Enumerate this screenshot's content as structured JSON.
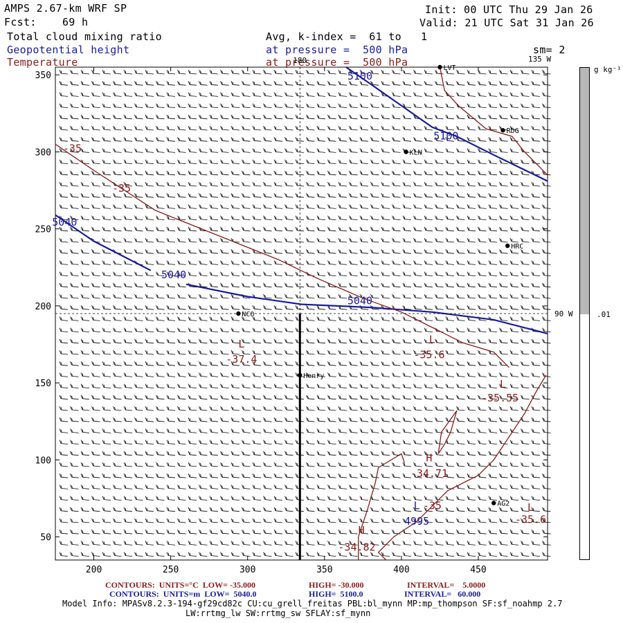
{
  "header": {
    "model": "AMPS 2.67-km WRF SP",
    "fcst": "Fcst:    69 h",
    "init": "Init: 00 UTC Thu 29 Jan 26",
    "valid": "Valid: 21 UTC Sat 31 Jan 26",
    "field1": "Total cloud mixing ratio",
    "field2": "Geopotential height",
    "field3": "Temperature",
    "avg": "Avg, k-index =  61 to   1",
    "pres1": "at pressure =  500 hPa",
    "pres2": "at pressure =  500 hPa",
    "sm": "sm= 2"
  },
  "map": {
    "x_ticks": [
      "200",
      "250",
      "300",
      "350",
      "400",
      "450"
    ],
    "y_ticks": [
      "350",
      "300",
      "250",
      "200",
      "150",
      "100",
      "50"
    ],
    "meridian_labels": {
      "top": "180",
      "top_right": "135 W",
      "right": "90 W"
    },
    "stations": [
      {
        "name": "LVT",
        "x": 425,
        "y": 355
      },
      {
        "name": "RDG",
        "x": 466,
        "y": 314
      },
      {
        "name": "KLN",
        "x": 403,
        "y": 300
      },
      {
        "name": "HRC",
        "x": 469,
        "y": 239
      },
      {
        "name": "NCO",
        "x": 294,
        "y": 195
      },
      {
        "name": "Henry",
        "x": 334,
        "y": 155
      },
      {
        "name": "AG2",
        "x": 460,
        "y": 72
      }
    ],
    "temp_labels": [
      {
        "text": "-35",
        "x": 186,
        "y": 300
      },
      {
        "text": "-35",
        "x": 218,
        "y": 274
      },
      {
        "text": "L",
        "x": 296,
        "y": 173
      },
      {
        "text": "-37.4",
        "x": 296,
        "y": 163
      },
      {
        "text": "L",
        "x": 420,
        "y": 176
      },
      {
        "text": "-35.6",
        "x": 418,
        "y": 166
      },
      {
        "text": "L",
        "x": 466,
        "y": 147
      },
      {
        "text": "-35.55",
        "x": 464,
        "y": 138
      },
      {
        "text": "H",
        "x": 418,
        "y": 99
      },
      {
        "text": "-34.71",
        "x": 418,
        "y": 89
      },
      {
        "text": "-35",
        "x": 420,
        "y": 68
      },
      {
        "text": "L",
        "x": 484,
        "y": 67
      },
      {
        "text": "-35.6",
        "x": 484,
        "y": 59
      },
      {
        "text": "H",
        "x": 374,
        "y": 52
      },
      {
        "text": "-34.82",
        "x": 371,
        "y": 41
      }
    ],
    "height_labels": [
      {
        "text": "5100",
        "x": 373,
        "y": 347
      },
      {
        "text": "5100",
        "x": 429,
        "y": 308
      },
      {
        "text": "5040",
        "x": 181,
        "y": 252
      },
      {
        "text": "5040",
        "x": 252,
        "y": 218
      },
      {
        "text": "5040",
        "x": 373,
        "y": 201
      },
      {
        "text": "L",
        "x": 410,
        "y": 68
      },
      {
        "text": "4995",
        "x": 410,
        "y": 58
      }
    ]
  },
  "footer": {
    "line1a": "CONTOURS:  UNITS=°C  LOW= -35.000",
    "line1b": "HIGH= -30.000",
    "line1c": "INTERVAL=    5.0000",
    "line2a": "CONTOURS:  UNITS=m  LOW=  5040.0",
    "line2b": "HIGH=  5100.0",
    "line2c": "INTERVAL=   60.000",
    "model_info": "Model Info: MPASv8.2.3-194-gf29cd82c CU:cu_grell_freitas PBL:bl_mynn MP:mp_thompson SF:sf_noahmp 2.7",
    "model_info2": "LW:rrtmg_lw SW:rrtmg_sw SFLAY:sf_mynn"
  },
  "colorbar": {
    "units": "g kg⁻¹",
    "tick": ".01"
  },
  "colors": {
    "height": "#1a1aa0",
    "temp": "#8b1a1a"
  }
}
